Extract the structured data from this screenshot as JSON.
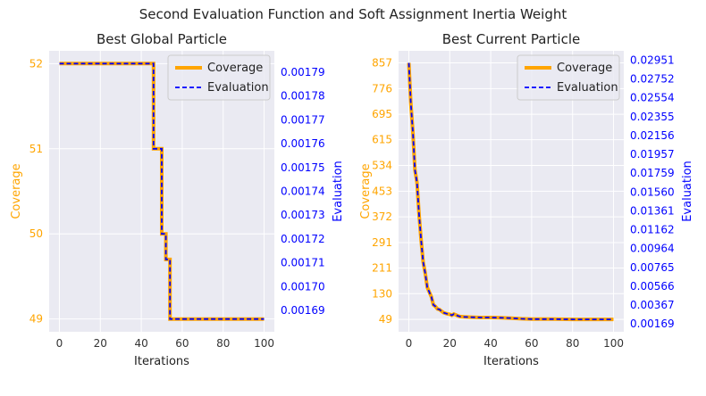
{
  "suptitle": "Second Evaluation Function and Soft Assignment Inertia Weight",
  "colors": {
    "coverage": "#FFA500",
    "evaluation": "#0000FF",
    "plot_bg": "#EAEAF2",
    "grid": "#FFFFFF",
    "tick_text": "#333333"
  },
  "chart_data": [
    {
      "type": "line",
      "title": "Best Global Particle",
      "xlabel": "Iterations",
      "ylabel_left": "Coverage",
      "ylabel_right": "Evaluation",
      "xlim": [
        -5,
        105
      ],
      "ylim_left": [
        48.85,
        52.15
      ],
      "ylim_right": [
        0.001681,
        0.001799
      ],
      "x_ticks": [
        0,
        20,
        40,
        60,
        80,
        100
      ],
      "y_left_ticks": [
        49,
        50,
        51,
        52
      ],
      "y_right_ticks": [
        "0.00169",
        "0.00170",
        "0.00171",
        "0.00172",
        "0.00173",
        "0.00174",
        "0.00175",
        "0.00176",
        "0.00177",
        "0.00178",
        "0.00179"
      ],
      "legend": [
        "Coverage",
        "Evaluation"
      ],
      "legend_loc": "top-right",
      "grid": true,
      "series": [
        {
          "name": "Coverage",
          "x": [
            0,
            46,
            46,
            50,
            50,
            52,
            52,
            54,
            54,
            100
          ],
          "y": [
            52,
            52,
            51,
            51,
            50,
            50,
            49.7,
            49.7,
            49,
            49
          ]
        },
        {
          "name": "Evaluation",
          "x": [
            0,
            46,
            46,
            50,
            50,
            52,
            52,
            54,
            54,
            100
          ],
          "y": [
            52,
            52,
            51,
            51,
            50,
            50,
            49.7,
            49.7,
            49,
            49
          ]
        }
      ]
    },
    {
      "type": "line",
      "title": "Best Current Particle",
      "xlabel": "Iterations",
      "ylabel_left": "Coverage",
      "ylabel_right": "Evaluation",
      "xlim": [
        -5,
        105
      ],
      "ylim_left": [
        10,
        895
      ],
      "ylim_right": [
        0.00085,
        0.0305
      ],
      "x_ticks": [
        0,
        20,
        40,
        60,
        80,
        100
      ],
      "y_left_ticks": [
        49,
        130,
        211,
        291,
        372,
        453,
        534,
        615,
        695,
        776,
        857
      ],
      "y_right_ticks": [
        "0.00169",
        "0.00367",
        "0.00566",
        "0.00765",
        "0.00964",
        "0.01162",
        "0.01361",
        "0.01560",
        "0.01759",
        "0.01957",
        "0.02156",
        "0.02355",
        "0.02554",
        "0.02752",
        "0.02951"
      ],
      "legend": [
        "Coverage",
        "Evaluation"
      ],
      "legend_loc": "top-right",
      "grid": true,
      "series": [
        {
          "name": "Coverage",
          "x": [
            0,
            1,
            2,
            3,
            4,
            5,
            6,
            7,
            8,
            9,
            10,
            11,
            12,
            13,
            14,
            15,
            16,
            17,
            18,
            19,
            20,
            21,
            22,
            23,
            24,
            25,
            27,
            30,
            35,
            40,
            45,
            50,
            55,
            60,
            70,
            80,
            90,
            100
          ],
          "y": [
            857,
            730,
            640,
            520,
            480,
            380,
            300,
            230,
            195,
            150,
            135,
            120,
            95,
            90,
            82,
            80,
            75,
            70,
            68,
            66,
            65,
            62,
            66,
            63,
            60,
            58,
            57,
            56,
            55,
            55,
            54,
            53,
            51,
            50,
            50,
            49,
            49,
            49
          ]
        },
        {
          "name": "Evaluation",
          "x": [
            0,
            1,
            2,
            3,
            4,
            5,
            6,
            7,
            8,
            9,
            10,
            11,
            12,
            13,
            14,
            15,
            16,
            17,
            18,
            19,
            20,
            21,
            22,
            23,
            24,
            25,
            27,
            30,
            35,
            40,
            45,
            50,
            55,
            60,
            70,
            80,
            90,
            100
          ],
          "y": [
            857,
            730,
            640,
            520,
            480,
            380,
            300,
            230,
            195,
            150,
            135,
            120,
            95,
            90,
            82,
            80,
            75,
            70,
            68,
            66,
            65,
            62,
            66,
            63,
            60,
            58,
            57,
            56,
            55,
            55,
            54,
            53,
            51,
            50,
            50,
            49,
            49,
            49
          ]
        }
      ]
    }
  ]
}
